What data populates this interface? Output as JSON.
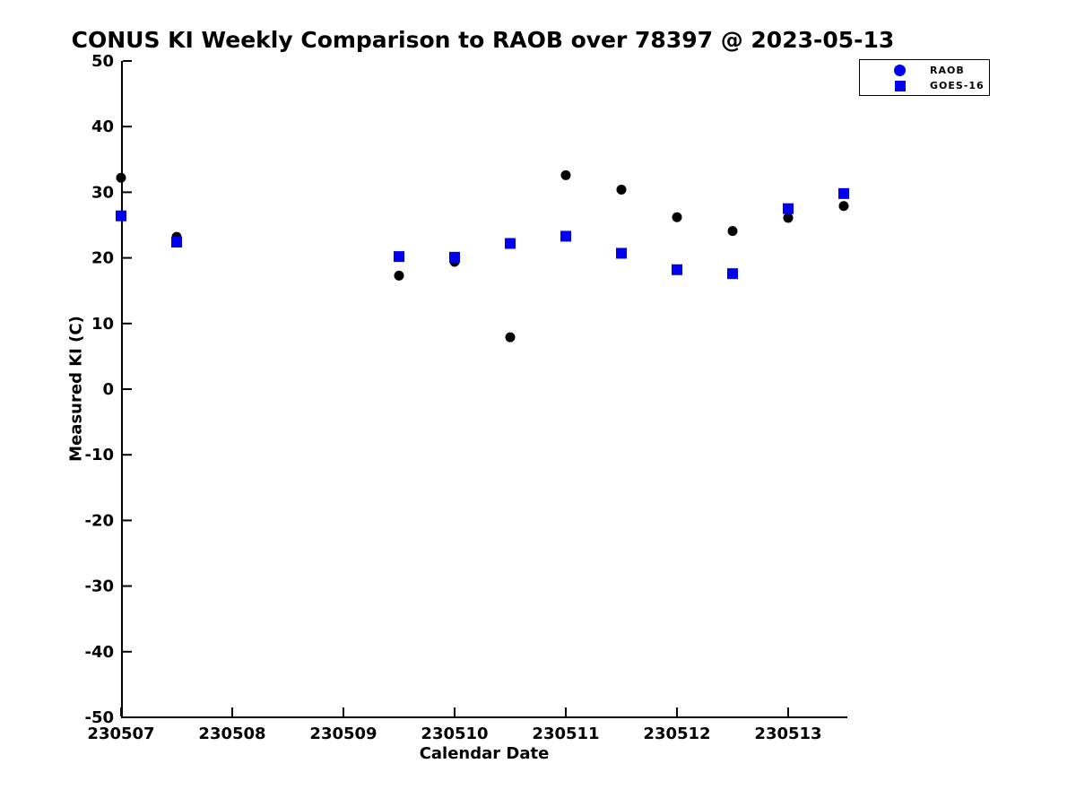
{
  "title": "CONUS KI Weekly Comparison to RAOB over 78397 @ 2023-05-13",
  "chart_data": {
    "type": "scatter",
    "title": "CONUS KI Weekly Comparison to RAOB over 78397 @ 2023-05-13",
    "xlabel": "Calendar Date",
    "ylabel": "Measured KI (C)",
    "xlim": [
      230507,
      230513.55
    ],
    "ylim": [
      -50,
      50
    ],
    "x_ticks": [
      230507,
      230508,
      230509,
      230510,
      230511,
      230512,
      230513
    ],
    "y_ticks": [
      50,
      40,
      30,
      20,
      10,
      0,
      -10,
      -20,
      -30,
      -40,
      -50
    ],
    "grid": false,
    "legend_position": "top-right-outside-markers-blue",
    "series": [
      {
        "name": "RAOB",
        "marker": "circle",
        "color": "#000000",
        "legend_color": "#0000EE",
        "points": [
          [
            230507.0,
            32.2
          ],
          [
            230507.5,
            23.2
          ],
          [
            230509.5,
            17.3
          ],
          [
            230510.0,
            19.4
          ],
          [
            230510.5,
            7.9
          ],
          [
            230511.0,
            32.6
          ],
          [
            230511.5,
            30.4
          ],
          [
            230512.0,
            26.2
          ],
          [
            230512.5,
            24.1
          ],
          [
            230513.0,
            26.1
          ],
          [
            230513.5,
            27.9
          ]
        ]
      },
      {
        "name": "GOES-16",
        "marker": "square",
        "color": "#0000EE",
        "legend_color": "#0000EE",
        "points": [
          [
            230507.0,
            26.4
          ],
          [
            230507.5,
            22.4
          ],
          [
            230509.5,
            20.2
          ],
          [
            230510.0,
            20.1
          ],
          [
            230510.5,
            22.2
          ],
          [
            230511.0,
            23.3
          ],
          [
            230511.5,
            20.7
          ],
          [
            230512.0,
            18.2
          ],
          [
            230512.5,
            17.6
          ],
          [
            230513.0,
            27.5
          ],
          [
            230513.5,
            29.8
          ]
        ]
      }
    ]
  }
}
